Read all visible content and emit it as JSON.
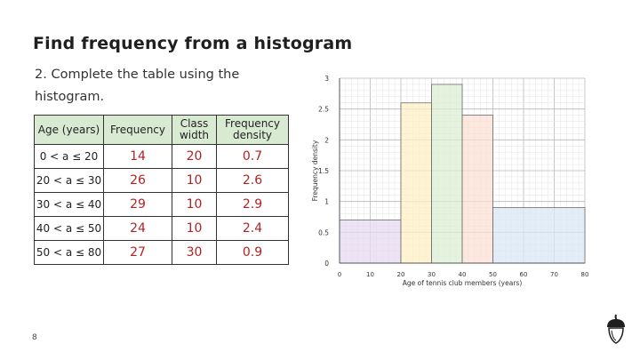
{
  "slide": {
    "title": "Find frequency from a histogram",
    "instruction": "2. Complete the table using the histogram.",
    "page_number": "8"
  },
  "table": {
    "headers": [
      "Age (years)",
      "Frequency",
      "Class width",
      "Frequency density"
    ],
    "rows": [
      [
        "0 < a ≤ 20",
        "14",
        "20",
        "0.7"
      ],
      [
        "20 < a ≤ 30",
        "26",
        "10",
        "2.6"
      ],
      [
        "30 < a ≤ 40",
        "29",
        "10",
        "2.9"
      ],
      [
        "40 < a ≤ 50",
        "24",
        "10",
        "2.4"
      ],
      [
        "50 < a ≤ 80",
        "27",
        "30",
        "0.9"
      ]
    ]
  },
  "chart_data": {
    "type": "bar",
    "xlabel": "Age of tennis club members (years)",
    "ylabel": "Frequency density",
    "xlim": [
      0,
      80
    ],
    "ylim": [
      0,
      3
    ],
    "xticks": [
      "0",
      "10",
      "20",
      "30",
      "40",
      "50",
      "60",
      "70",
      "80"
    ],
    "yticks": [
      "0",
      "0.5",
      "1",
      "1.5",
      "2",
      "2.5",
      "3"
    ],
    "grid": true,
    "bins": [
      {
        "x0": 0,
        "x1": 20,
        "value": 0.7,
        "color": "#e6d9f2"
      },
      {
        "x0": 20,
        "x1": 30,
        "value": 2.6,
        "color": "#fdf0c4"
      },
      {
        "x0": 30,
        "x1": 40,
        "value": 2.9,
        "color": "#dcedd3"
      },
      {
        "x0": 40,
        "x1": 50,
        "value": 2.4,
        "color": "#fbe0d3"
      },
      {
        "x0": 50,
        "x1": 80,
        "value": 0.9,
        "color": "#d9e7f4"
      }
    ]
  }
}
